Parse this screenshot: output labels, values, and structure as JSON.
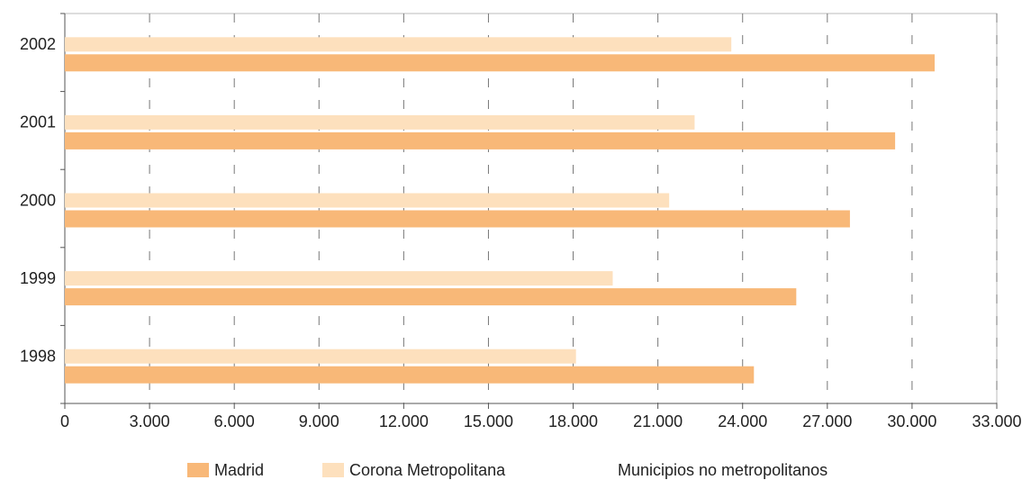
{
  "chart_data": {
    "type": "hbar",
    "categories": [
      "1998",
      "1999",
      "2000",
      "2001",
      "2002"
    ],
    "series": [
      {
        "name": "Madrid",
        "color": "#f8b878",
        "values": [
          24400,
          25900,
          27800,
          29400,
          30800
        ]
      },
      {
        "name": "Corona Metropolitana",
        "color": "#fde0bd",
        "values": [
          18100,
          19400,
          21400,
          22300,
          23600
        ]
      },
      {
        "name": "Municipios no metropolitanos",
        "values": [
          null,
          null,
          null,
          null,
          null
        ]
      }
    ],
    "xlim": [
      0,
      33000
    ],
    "xticks": [
      0,
      {
        "value": 3000,
        "label": "3.000"
      },
      {
        "value": 6000,
        "label": "6.000"
      },
      {
        "value": 9000,
        "label": "9.000"
      },
      {
        "value": 12000,
        "label": "12.000"
      },
      {
        "value": 15000,
        "label": "15.000"
      },
      {
        "value": 18000,
        "label": "18.000"
      },
      {
        "value": 21000,
        "label": "21.000"
      },
      {
        "value": 24000,
        "label": "24.000"
      },
      {
        "value": 27000,
        "label": "27.000"
      },
      {
        "value": 30000,
        "label": "30.000"
      },
      {
        "value": 33000,
        "label": "33.000"
      }
    ],
    "grid": true
  }
}
